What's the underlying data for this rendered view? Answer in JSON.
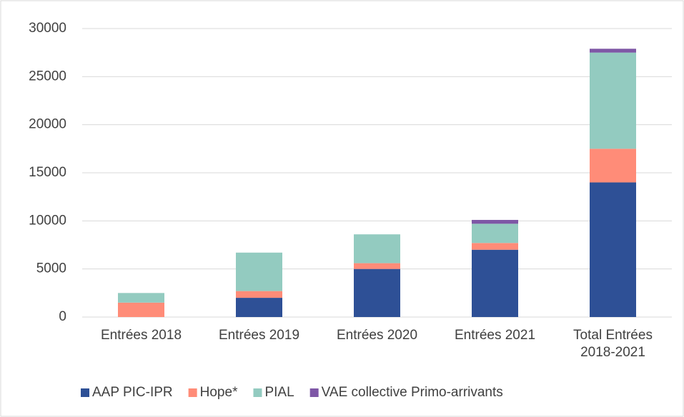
{
  "chart_data": {
    "type": "stacked_bar",
    "categories": [
      "Entrées 2018",
      "Entrées 2019",
      "Entrées 2020",
      "Entrées 2021",
      "Total Entrées 2018-2021"
    ],
    "series": [
      {
        "name": "AAP PIC-IPR",
        "color": "#2e5096",
        "values": [
          0,
          2000,
          5000,
          7000,
          14000
        ]
      },
      {
        "name": "Hope*",
        "color": "#ff8c78",
        "values": [
          1500,
          700,
          600,
          700,
          3500
        ]
      },
      {
        "name": "PIAL",
        "color": "#93cbc0",
        "values": [
          1000,
          4000,
          3000,
          2000,
          10000
        ]
      },
      {
        "name": "VAE collective Primo-arrivants",
        "color": "#7e57a6",
        "values": [
          0,
          0,
          0,
          400,
          400
        ]
      }
    ],
    "ylim": [
      0,
      30000
    ],
    "yticks": [
      0,
      5000,
      10000,
      15000,
      20000,
      25000,
      30000
    ],
    "grid": true,
    "legend": "bottom"
  }
}
